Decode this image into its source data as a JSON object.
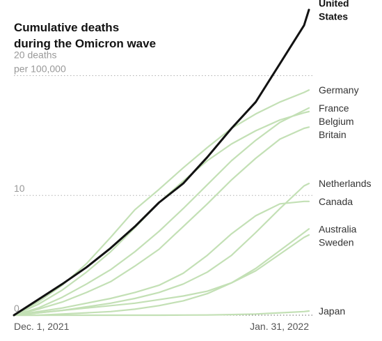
{
  "chart_data": {
    "type": "line",
    "title_lines": [
      "Cumulative deaths",
      "during the Omicron wave"
    ],
    "xlabel": "",
    "ylabel": "",
    "x_ticks": [
      "Dec. 1, 2021",
      "Jan. 31, 2022"
    ],
    "x_range": [
      "2021-12-01",
      "2022-01-31"
    ],
    "ylim": [
      0,
      25.5
    ],
    "y_ticks": [
      {
        "value": 0,
        "lines": [
          "0"
        ]
      },
      {
        "value": 10,
        "lines": [
          "10"
        ]
      },
      {
        "value": 20,
        "lines": [
          "20 deaths",
          "per 100,000"
        ]
      }
    ],
    "grid": "dotted horizontal at y ticks",
    "x_days": [
      0,
      5,
      10,
      15,
      20,
      25,
      30,
      35,
      40,
      45,
      50,
      55,
      60,
      61
    ],
    "series": [
      {
        "name": "United States",
        "highlight": true,
        "label_lines": [
          "United",
          "States"
        ],
        "values": [
          0,
          1.3,
          2.6,
          4.0,
          5.6,
          7.4,
          9.4,
          11.0,
          13.2,
          15.6,
          17.8,
          21.0,
          24.2,
          25.5
        ]
      },
      {
        "name": "Germany",
        "label_lines": [
          "Germany"
        ],
        "values": [
          0,
          1.1,
          2.5,
          4.3,
          6.5,
          8.8,
          10.5,
          12.3,
          14.0,
          15.6,
          16.8,
          17.8,
          18.6,
          18.8
        ]
      },
      {
        "name": "France",
        "label_lines": [
          "France"
        ],
        "values": [
          0,
          0.6,
          1.5,
          2.6,
          3.8,
          5.3,
          7.0,
          8.9,
          10.9,
          12.9,
          14.6,
          16.1,
          17.1,
          17.3
        ]
      },
      {
        "name": "Belgium",
        "label_lines": [
          "Belgium"
        ],
        "values": [
          0,
          0.9,
          2.1,
          3.6,
          5.3,
          7.3,
          9.4,
          11.2,
          12.9,
          14.3,
          15.4,
          16.3,
          16.9,
          17.0
        ]
      },
      {
        "name": "Britain",
        "label_lines": [
          "Britain"
        ],
        "values": [
          0,
          0.5,
          1.1,
          1.9,
          2.8,
          4.1,
          5.5,
          7.4,
          9.3,
          11.3,
          13.1,
          14.7,
          15.6,
          15.7
        ]
      },
      {
        "name": "Netherlands",
        "label_lines": [
          "Netherlands"
        ],
        "values": [
          0,
          0.2,
          0.4,
          0.7,
          1.0,
          1.4,
          1.9,
          2.6,
          3.6,
          5.0,
          6.9,
          8.9,
          10.8,
          11.0
        ]
      },
      {
        "name": "Canada",
        "label_lines": [
          "Canada"
        ],
        "values": [
          0,
          0.3,
          0.6,
          1.0,
          1.4,
          1.9,
          2.5,
          3.5,
          5.0,
          6.8,
          8.3,
          9.3,
          9.5,
          9.5
        ]
      },
      {
        "name": "Australia",
        "label_lines": [
          "Australia"
        ],
        "values": [
          0,
          0.0,
          0.1,
          0.2,
          0.3,
          0.5,
          0.8,
          1.2,
          1.8,
          2.7,
          3.9,
          5.4,
          6.9,
          7.2
        ]
      },
      {
        "name": "Sweden",
        "label_lines": [
          "Sweden"
        ],
        "values": [
          0,
          0.2,
          0.4,
          0.6,
          0.8,
          1.0,
          1.3,
          1.6,
          2.0,
          2.7,
          3.7,
          5.1,
          6.5,
          6.7
        ]
      },
      {
        "name": "Japan",
        "label_lines": [
          "Japan"
        ],
        "values": [
          0,
          0.0,
          0.0,
          0.0,
          0.0,
          0.0,
          0.0,
          0.01,
          0.02,
          0.05,
          0.1,
          0.2,
          0.3,
          0.35
        ]
      }
    ],
    "colors": {
      "highlight": "#121212",
      "other": "#c3e0b5",
      "grid": "#b0b0b0",
      "baseline": "#666666"
    }
  }
}
